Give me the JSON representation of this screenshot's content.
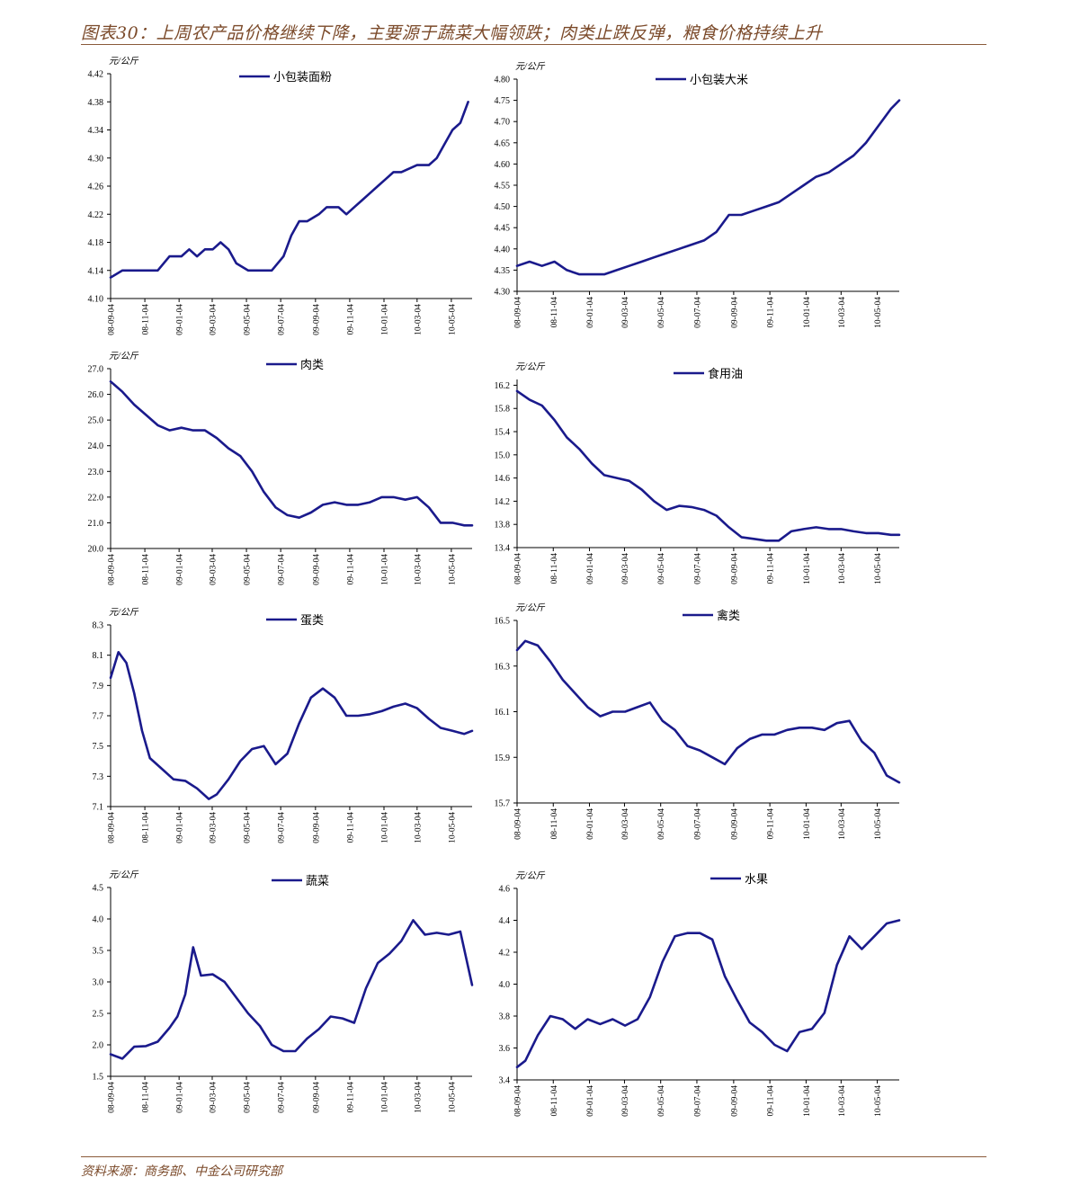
{
  "header": {
    "title": "图表30：上周农产品价格继续下降，主要源于蔬菜大幅领跌；肉类止跌反弹，粮食价格持续上升"
  },
  "footer": {
    "source": "资料来源：商务部、中金公司研究部"
  },
  "colors": {
    "line": "#1a1a8c",
    "accent": "#7b4a2a",
    "axis": "#000000"
  },
  "x_ticks": [
    "08-09-04",
    "08-11-04",
    "09-01-04",
    "09-03-04",
    "09-05-04",
    "09-07-04",
    "09-09-04",
    "09-11-04",
    "10-01-04",
    "10-03-04",
    "10-05-04"
  ],
  "chart_data": [
    {
      "type": "line",
      "unit": "元/公斤",
      "legend": "小包装面粉",
      "yticks": [
        "4.10",
        "4.14",
        "4.18",
        "4.22",
        "4.26",
        "4.30",
        "4.34",
        "4.38",
        "4.42"
      ],
      "ylim": [
        4.1,
        4.42
      ],
      "x": [
        "2008-09-04",
        "2008-09-25",
        "2008-10-16",
        "2008-11-06",
        "2008-11-27",
        "2008-12-18",
        "2009-01-08",
        "2009-01-22",
        "2009-02-05",
        "2009-02-19",
        "2009-03-05",
        "2009-03-19",
        "2009-04-02",
        "2009-04-16",
        "2009-05-07",
        "2009-05-28",
        "2009-06-18",
        "2009-07-09",
        "2009-07-23",
        "2009-08-06",
        "2009-08-20",
        "2009-09-10",
        "2009-09-24",
        "2009-10-15",
        "2009-10-29",
        "2009-11-12",
        "2009-11-26",
        "2009-12-10",
        "2009-12-24",
        "2010-01-07",
        "2010-01-21",
        "2010-02-04",
        "2010-03-04",
        "2010-03-25",
        "2010-04-08",
        "2010-04-22",
        "2010-05-06",
        "2010-05-20",
        "2010-06-03"
      ],
      "values": [
        4.13,
        4.14,
        4.14,
        4.14,
        4.14,
        4.16,
        4.16,
        4.17,
        4.16,
        4.17,
        4.17,
        4.18,
        4.17,
        4.15,
        4.14,
        4.14,
        4.14,
        4.16,
        4.19,
        4.21,
        4.21,
        4.22,
        4.23,
        4.23,
        4.22,
        4.23,
        4.24,
        4.25,
        4.26,
        4.27,
        4.28,
        4.28,
        4.29,
        4.29,
        4.3,
        4.32,
        4.34,
        4.35,
        4.38
      ]
    },
    {
      "type": "line",
      "unit": "元/公斤",
      "legend": "小包装大米",
      "yticks": [
        "4.30",
        "4.35",
        "4.40",
        "4.45",
        "4.50",
        "4.55",
        "4.60",
        "4.65",
        "4.70",
        "4.75",
        "4.80"
      ],
      "ylim": [
        4.3,
        4.8
      ],
      "x": [
        "2008-09-04",
        "2008-09-25",
        "2008-10-16",
        "2008-11-06",
        "2008-11-27",
        "2008-12-18",
        "2009-01-08",
        "2009-01-29",
        "2009-02-19",
        "2009-03-12",
        "2009-04-02",
        "2009-04-23",
        "2009-05-14",
        "2009-06-04",
        "2009-06-25",
        "2009-07-16",
        "2009-08-06",
        "2009-08-27",
        "2009-09-17",
        "2009-10-08",
        "2009-10-29",
        "2009-11-19",
        "2009-12-10",
        "2009-12-31",
        "2010-01-21",
        "2010-02-11",
        "2010-03-04",
        "2010-03-25",
        "2010-04-15",
        "2010-05-06",
        "2010-05-27",
        "2010-06-10"
      ],
      "values": [
        4.36,
        4.37,
        4.36,
        4.37,
        4.35,
        4.34,
        4.34,
        4.34,
        4.35,
        4.36,
        4.37,
        4.38,
        4.39,
        4.4,
        4.41,
        4.42,
        4.44,
        4.48,
        4.48,
        4.49,
        4.5,
        4.51,
        4.53,
        4.55,
        4.57,
        4.58,
        4.6,
        4.62,
        4.65,
        4.69,
        4.73,
        4.75
      ]
    },
    {
      "type": "line",
      "unit": "元/公斤",
      "legend": "肉类",
      "yticks": [
        "20.0",
        "21.0",
        "22.0",
        "23.0",
        "24.0",
        "25.0",
        "26.0",
        "27.0"
      ],
      "ylim": [
        20.0,
        27.0
      ],
      "x": [
        "2008-09-04",
        "2008-09-25",
        "2008-10-16",
        "2008-11-06",
        "2008-11-27",
        "2008-12-18",
        "2009-01-08",
        "2009-01-29",
        "2009-02-19",
        "2009-03-12",
        "2009-04-02",
        "2009-04-23",
        "2009-05-14",
        "2009-06-04",
        "2009-06-25",
        "2009-07-16",
        "2009-08-06",
        "2009-08-27",
        "2009-09-17",
        "2009-10-08",
        "2009-10-29",
        "2009-11-19",
        "2009-12-10",
        "2009-12-31",
        "2010-01-21",
        "2010-02-11",
        "2010-03-04",
        "2010-03-25",
        "2010-04-15",
        "2010-05-06",
        "2010-05-27",
        "2010-06-10"
      ],
      "values": [
        26.5,
        26.1,
        25.6,
        25.2,
        24.8,
        24.6,
        24.7,
        24.6,
        24.6,
        24.3,
        23.9,
        23.6,
        23.0,
        22.2,
        21.6,
        21.3,
        21.2,
        21.4,
        21.7,
        21.8,
        21.7,
        21.7,
        21.8,
        22.0,
        22.0,
        21.9,
        22.0,
        21.6,
        21.0,
        21.0,
        20.9,
        20.9
      ]
    },
    {
      "type": "line",
      "unit": "元/公斤",
      "legend": "食用油",
      "yticks": [
        "13.4",
        "13.8",
        "14.2",
        "14.6",
        "15.0",
        "15.4",
        "15.8",
        "16.2"
      ],
      "ylim": [
        13.4,
        16.3
      ],
      "x": [
        "2008-09-04",
        "2008-09-25",
        "2008-10-16",
        "2008-11-06",
        "2008-11-27",
        "2008-12-18",
        "2009-01-08",
        "2009-01-29",
        "2009-02-19",
        "2009-03-12",
        "2009-04-02",
        "2009-04-23",
        "2009-05-14",
        "2009-06-04",
        "2009-06-25",
        "2009-07-16",
        "2009-08-06",
        "2009-08-27",
        "2009-09-17",
        "2009-10-08",
        "2009-10-29",
        "2009-11-19",
        "2009-12-10",
        "2009-12-31",
        "2010-01-21",
        "2010-02-11",
        "2010-03-04",
        "2010-03-25",
        "2010-04-15",
        "2010-05-06",
        "2010-05-27",
        "2010-06-10"
      ],
      "values": [
        16.1,
        15.95,
        15.85,
        15.6,
        15.3,
        15.1,
        14.85,
        14.65,
        14.6,
        14.55,
        14.4,
        14.2,
        14.05,
        14.12,
        14.1,
        14.05,
        13.95,
        13.75,
        13.58,
        13.55,
        13.52,
        13.52,
        13.68,
        13.72,
        13.75,
        13.72,
        13.72,
        13.68,
        13.65,
        13.65,
        13.62,
        13.62
      ]
    },
    {
      "type": "line",
      "unit": "元/公斤",
      "legend": "蛋类",
      "yticks": [
        "7.1",
        "7.3",
        "7.5",
        "7.7",
        "7.9",
        "8.1",
        "8.3"
      ],
      "ylim": [
        7.1,
        8.3
      ],
      "x": [
        "2008-09-04",
        "2008-09-18",
        "2008-10-02",
        "2008-10-16",
        "2008-10-30",
        "2008-11-13",
        "2008-12-04",
        "2008-12-25",
        "2009-01-15",
        "2009-02-05",
        "2009-02-26",
        "2009-03-12",
        "2009-04-02",
        "2009-04-23",
        "2009-05-14",
        "2009-06-04",
        "2009-06-25",
        "2009-07-16",
        "2009-08-06",
        "2009-08-27",
        "2009-09-17",
        "2009-10-08",
        "2009-10-29",
        "2009-11-19",
        "2009-12-10",
        "2009-12-31",
        "2010-01-21",
        "2010-02-11",
        "2010-03-04",
        "2010-03-25",
        "2010-04-15",
        "2010-05-06",
        "2010-05-27",
        "2010-06-10"
      ],
      "values": [
        7.95,
        8.12,
        8.05,
        7.85,
        7.6,
        7.42,
        7.35,
        7.28,
        7.27,
        7.22,
        7.15,
        7.18,
        7.28,
        7.4,
        7.48,
        7.5,
        7.38,
        7.45,
        7.65,
        7.82,
        7.88,
        7.82,
        7.7,
        7.7,
        7.71,
        7.73,
        7.76,
        7.78,
        7.75,
        7.68,
        7.62,
        7.6,
        7.58,
        7.6
      ]
    },
    {
      "type": "line",
      "unit": "元/公斤",
      "legend": "禽类",
      "yticks": [
        "15.7",
        "15.9",
        "16.1",
        "16.3",
        "16.5"
      ],
      "ylim": [
        15.7,
        16.5
      ],
      "x": [
        "2008-09-04",
        "2008-09-18",
        "2008-10-09",
        "2008-10-30",
        "2008-11-20",
        "2008-12-11",
        "2009-01-01",
        "2009-01-22",
        "2009-02-12",
        "2009-03-05",
        "2009-03-26",
        "2009-04-16",
        "2009-05-07",
        "2009-05-28",
        "2009-06-18",
        "2009-07-09",
        "2009-07-30",
        "2009-08-20",
        "2009-09-10",
        "2009-10-01",
        "2009-10-22",
        "2009-11-12",
        "2009-12-03",
        "2009-12-24",
        "2010-01-14",
        "2010-02-04",
        "2010-02-25",
        "2010-03-18",
        "2010-04-08",
        "2010-04-29",
        "2010-05-20",
        "2010-06-10"
      ],
      "values": [
        16.37,
        16.41,
        16.39,
        16.32,
        16.24,
        16.18,
        16.12,
        16.08,
        16.1,
        16.1,
        16.12,
        16.14,
        16.06,
        16.02,
        15.95,
        15.93,
        15.9,
        15.87,
        15.94,
        15.98,
        16.0,
        16.0,
        16.02,
        16.03,
        16.03,
        16.02,
        16.05,
        16.06,
        15.97,
        15.92,
        15.82,
        15.79
      ]
    },
    {
      "type": "line",
      "unit": "元/公斤",
      "legend": "蔬菜",
      "yticks": [
        "1.5",
        "2.0",
        "2.5",
        "3.0",
        "3.5",
        "4.0",
        "4.5"
      ],
      "ylim": [
        1.5,
        4.5
      ],
      "x": [
        "2008-09-04",
        "2008-09-25",
        "2008-10-16",
        "2008-11-06",
        "2008-11-27",
        "2008-12-18",
        "2009-01-01",
        "2009-01-15",
        "2009-01-29",
        "2009-02-12",
        "2009-03-05",
        "2009-03-26",
        "2009-04-16",
        "2009-05-07",
        "2009-05-28",
        "2009-06-18",
        "2009-07-09",
        "2009-07-30",
        "2009-08-20",
        "2009-09-10",
        "2009-10-01",
        "2009-10-22",
        "2009-11-12",
        "2009-12-03",
        "2009-12-24",
        "2010-01-14",
        "2010-02-04",
        "2010-02-25",
        "2010-03-18",
        "2010-04-08",
        "2010-04-29",
        "2010-05-20",
        "2010-06-10"
      ],
      "values": [
        1.85,
        1.78,
        1.97,
        1.98,
        2.05,
        2.27,
        2.45,
        2.8,
        3.55,
        3.1,
        3.12,
        3.0,
        2.75,
        2.5,
        2.3,
        2.0,
        1.9,
        1.9,
        2.1,
        2.25,
        2.45,
        2.42,
        2.35,
        2.9,
        3.3,
        3.45,
        3.65,
        3.98,
        3.75,
        3.78,
        3.75,
        3.8,
        2.95
      ]
    },
    {
      "type": "line",
      "unit": "元/公斤",
      "legend": "水果",
      "yticks": [
        "3.4",
        "3.6",
        "3.8",
        "4.0",
        "4.2",
        "4.4",
        "4.6"
      ],
      "ylim": [
        3.4,
        4.6
      ],
      "x": [
        "2008-09-04",
        "2008-09-18",
        "2008-10-09",
        "2008-10-30",
        "2008-11-20",
        "2008-12-11",
        "2009-01-01",
        "2009-01-22",
        "2009-02-12",
        "2009-03-05",
        "2009-03-26",
        "2009-04-16",
        "2009-05-07",
        "2009-05-28",
        "2009-06-18",
        "2009-07-09",
        "2009-07-30",
        "2009-08-20",
        "2009-09-10",
        "2009-10-01",
        "2009-10-22",
        "2009-11-12",
        "2009-12-03",
        "2009-12-24",
        "2010-01-14",
        "2010-02-04",
        "2010-02-25",
        "2010-03-18",
        "2010-04-08",
        "2010-04-29",
        "2010-05-20",
        "2010-06-10"
      ],
      "values": [
        3.48,
        3.52,
        3.68,
        3.8,
        3.78,
        3.72,
        3.78,
        3.75,
        3.78,
        3.74,
        3.78,
        3.92,
        4.14,
        4.3,
        4.32,
        4.32,
        4.28,
        4.05,
        3.9,
        3.76,
        3.7,
        3.62,
        3.58,
        3.7,
        3.72,
        3.82,
        4.12,
        4.3,
        4.22,
        4.3,
        4.38,
        4.4
      ]
    }
  ]
}
